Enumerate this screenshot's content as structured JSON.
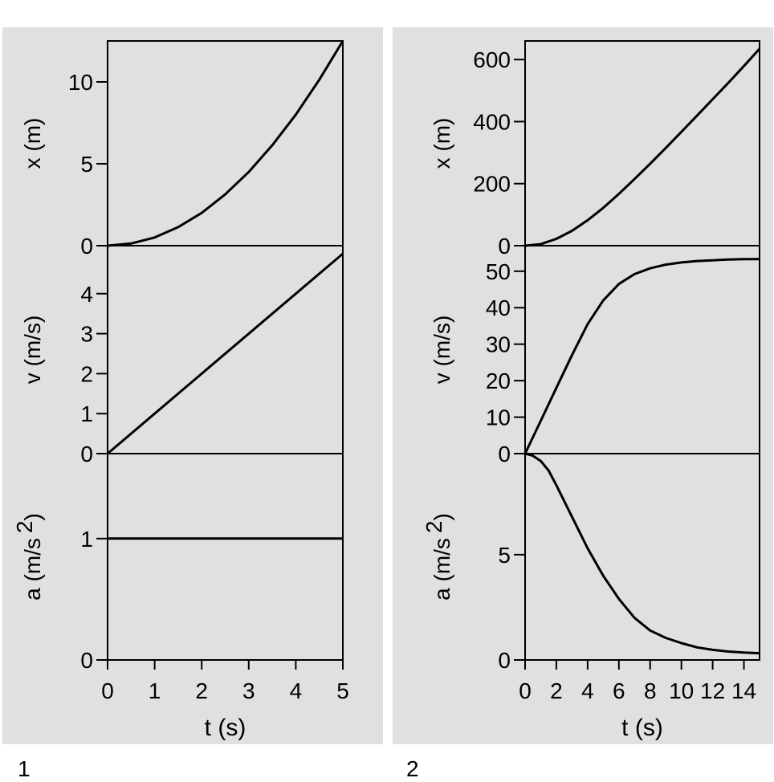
{
  "figure": {
    "panel_labels": [
      "1",
      "2"
    ]
  },
  "chart_data": [
    {
      "type": "line",
      "panel": "1",
      "xlabel": "t (s)",
      "xlim": [
        0,
        5
      ],
      "xticks": [
        0,
        1,
        2,
        3,
        4,
        5
      ],
      "xtick_labels": [
        "0",
        "1",
        "2",
        "3",
        "4",
        "5"
      ],
      "subplots": [
        {
          "ylabel": "x (m)",
          "ylim": [
            0,
            12.5
          ],
          "yticks": [
            0,
            5,
            10
          ],
          "ytick_labels": [
            "0",
            "5",
            "10"
          ],
          "series": [
            {
              "x": [
                0,
                0.5,
                1,
                1.5,
                2,
                2.5,
                3,
                3.5,
                4,
                4.5,
                5
              ],
              "values": [
                0,
                0.13,
                0.5,
                1.13,
                2.0,
                3.13,
                4.5,
                6.13,
                8.0,
                10.13,
                12.5
              ]
            }
          ]
        },
        {
          "ylabel": "v (m/s)",
          "ylim": [
            0,
            5.2
          ],
          "yticks": [
            0,
            1,
            2,
            3,
            4
          ],
          "ytick_labels": [
            "0",
            "1",
            "2",
            "3",
            "4"
          ],
          "series": [
            {
              "x": [
                0,
                5
              ],
              "values": [
                0,
                5
              ]
            }
          ]
        },
        {
          "ylabel": "a (m/s",
          "ylabel_superscript": "2",
          "ylabel_close": ")",
          "ylim": [
            0,
            1.7
          ],
          "yticks": [
            0,
            1
          ],
          "ytick_labels": [
            "0",
            "1"
          ],
          "series": [
            {
              "x": [
                0,
                5
              ],
              "values": [
                1,
                1
              ]
            }
          ]
        }
      ]
    },
    {
      "type": "line",
      "panel": "2",
      "xlabel": "t (s)",
      "xlim": [
        0,
        15
      ],
      "xticks": [
        0,
        2,
        4,
        6,
        8,
        10,
        12,
        14
      ],
      "xtick_labels": [
        "0",
        "2",
        "4",
        "6",
        "8",
        "10",
        "12",
        "14"
      ],
      "subplots": [
        {
          "ylabel": "x (m)",
          "ylim": [
            0,
            660
          ],
          "yticks": [
            0,
            200,
            400,
            600
          ],
          "ytick_labels": [
            "0",
            "200",
            "400",
            "600"
          ],
          "series": [
            {
              "x": [
                0,
                1,
                2,
                3,
                4,
                5,
                6,
                7,
                8,
                9,
                10,
                11,
                12,
                13,
                14,
                15
              ],
              "values": [
                0,
                5,
                22,
                48,
                82,
                122,
                167,
                215,
                264,
                315,
                367,
                419,
                472,
                525,
                579,
                635
              ]
            }
          ]
        },
        {
          "ylabel": "v (m/s)",
          "ylim": [
            0,
            57
          ],
          "yticks": [
            0,
            10,
            20,
            30,
            40,
            50
          ],
          "ytick_labels": [
            "0",
            "10",
            "20",
            "30",
            "40",
            "50"
          ],
          "series": [
            {
              "x": [
                0,
                1,
                2,
                3,
                4,
                5,
                6,
                7,
                8,
                9,
                10,
                11,
                12,
                13,
                14,
                15
              ],
              "values": [
                0,
                9,
                18,
                27,
                35.5,
                42,
                46.5,
                49.2,
                50.8,
                51.8,
                52.4,
                52.8,
                53.0,
                53.2,
                53.3,
                53.3
              ]
            }
          ]
        },
        {
          "ylabel": "a (m/s",
          "ylabel_superscript": "2",
          "ylabel_close": ")",
          "ylim": [
            0,
            9.8
          ],
          "yticks": [
            0,
            5
          ],
          "ytick_labels": [
            "0",
            "5"
          ],
          "series": [
            {
              "x": [
                0,
                0.5,
                1,
                1.5,
                2,
                3,
                4,
                5,
                6,
                7,
                8,
                9,
                10,
                11,
                12,
                13,
                14,
                15
              ],
              "values": [
                9.8,
                9.7,
                9.45,
                9.0,
                8.3,
                6.8,
                5.3,
                4.0,
                2.9,
                2.0,
                1.4,
                1.05,
                0.8,
                0.6,
                0.48,
                0.4,
                0.35,
                0.32
              ]
            }
          ]
        }
      ]
    }
  ]
}
